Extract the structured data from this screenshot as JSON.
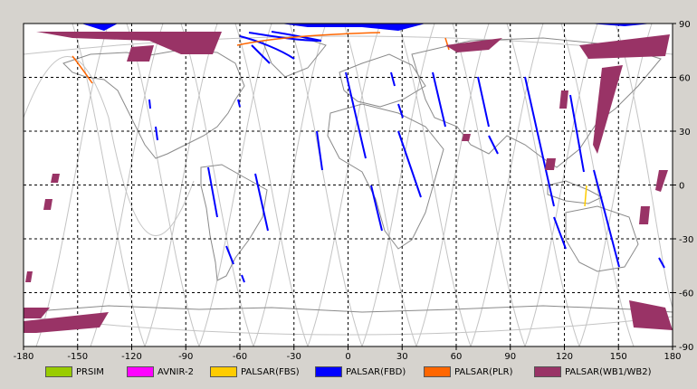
{
  "map": {
    "x_ticks": [
      "-180",
      "-150",
      "-120",
      "-90",
      "-60",
      "-30",
      "0",
      "30",
      "60",
      "90",
      "120",
      "150",
      "180"
    ],
    "y_ticks": [
      "90",
      "60",
      "30",
      "0",
      "-30",
      "-60",
      "-90"
    ],
    "x_range": [
      -180,
      180
    ],
    "y_range": [
      -90,
      90
    ],
    "grid": "dashed",
    "colors": {
      "background": "#ffffff",
      "frame_bg": "#d6d3ce",
      "coastline": "#8a8a8a",
      "orbit": "#c0c0c0"
    }
  },
  "legend": [
    {
      "label": "PRSIM",
      "color": "#99cc00"
    },
    {
      "label": "AVNIR-2",
      "color": "#ff00ff"
    },
    {
      "label": "PALSAR(FBS)",
      "color": "#ffcc00"
    },
    {
      "label": "PALSAR(FBD)",
      "color": "#0000ff"
    },
    {
      "label": "PALSAR(PLR)",
      "color": "#ff6600"
    },
    {
      "label": "PALSAR(WB1/WB2)",
      "color": "#993366"
    }
  ]
}
